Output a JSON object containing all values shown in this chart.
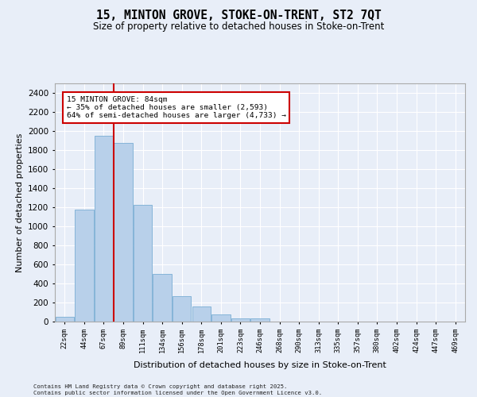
{
  "title1": "15, MINTON GROVE, STOKE-ON-TRENT, ST2 7QT",
  "title2": "Size of property relative to detached houses in Stoke-on-Trent",
  "xlabel": "Distribution of detached houses by size in Stoke-on-Trent",
  "ylabel": "Number of detached properties",
  "categories": [
    "22sqm",
    "44sqm",
    "67sqm",
    "89sqm",
    "111sqm",
    "134sqm",
    "156sqm",
    "178sqm",
    "201sqm",
    "223sqm",
    "246sqm",
    "268sqm",
    "290sqm",
    "313sqm",
    "335sqm",
    "357sqm",
    "380sqm",
    "402sqm",
    "424sqm",
    "447sqm",
    "469sqm"
  ],
  "values": [
    50,
    1175,
    1950,
    1875,
    1225,
    500,
    270,
    160,
    75,
    35,
    30,
    0,
    0,
    0,
    0,
    0,
    0,
    0,
    0,
    0,
    0
  ],
  "bar_color": "#b8d0ea",
  "bar_edge_color": "#7aadd4",
  "vline_color": "#cc0000",
  "vline_pos": 2.5,
  "annotation_text": "15 MINTON GROVE: 84sqm\n← 35% of detached houses are smaller (2,593)\n64% of semi-detached houses are larger (4,733) →",
  "annotation_box_edgecolor": "#cc0000",
  "ylim_max": 2500,
  "yticks": [
    0,
    200,
    400,
    600,
    800,
    1000,
    1200,
    1400,
    1600,
    1800,
    2000,
    2200,
    2400
  ],
  "background_color": "#e8eef8",
  "grid_color": "#ffffff",
  "footer_text": "Contains HM Land Registry data © Crown copyright and database right 2025.\nContains public sector information licensed under the Open Government Licence v3.0."
}
